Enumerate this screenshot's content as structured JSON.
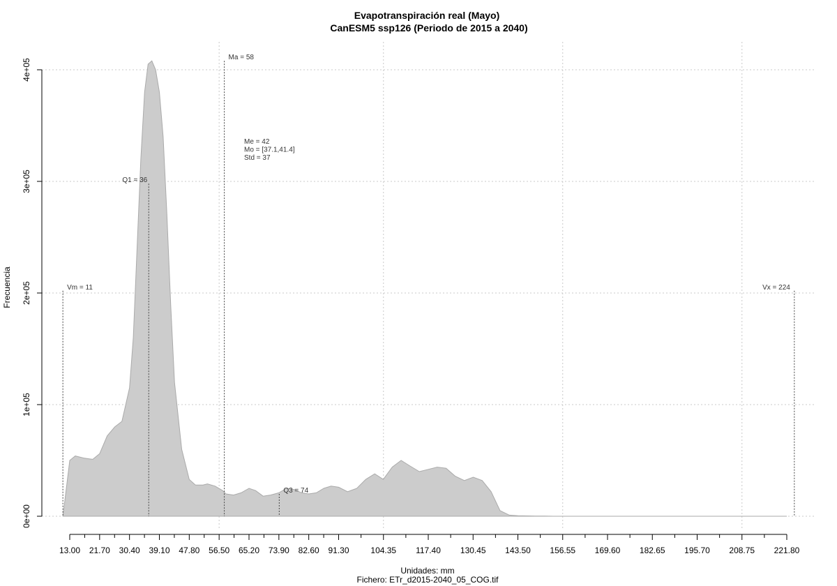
{
  "chart_data": {
    "type": "area",
    "title": "Evapotranspiración real (Mayo)",
    "subtitle": "CanESM5 ssp126 (Periodo de 2015 a 2040)",
    "xlabel": "Unidades: mm",
    "ylabel": "Frecuencia",
    "footer": "Fichero: ETr_d2015-2040_05_COG.tif",
    "xlim": [
      8.5,
      231
    ],
    "ylim": [
      0,
      420000
    ],
    "x_ticks": [
      13.0,
      21.7,
      30.4,
      39.1,
      47.8,
      56.5,
      65.2,
      73.9,
      82.6,
      91.3,
      104.35,
      117.4,
      130.45,
      143.5,
      156.55,
      169.6,
      182.65,
      195.7,
      208.75,
      221.8
    ],
    "x_tick_labels": [
      "13.00",
      "21.70",
      "30.40",
      "39.10",
      "47.80",
      "56.50",
      "65.20",
      "73.90",
      "82.60",
      "91.30",
      "104.35",
      "117.40",
      "130.45",
      "143.50",
      "156.55",
      "169.60",
      "182.65",
      "195.70",
      "208.75",
      "221.80"
    ],
    "x_minor_ticks": [
      17.35,
      26.05,
      34.75,
      43.45,
      52.15,
      60.85,
      69.55,
      78.25,
      86.95,
      97.825,
      110.875,
      123.925,
      136.975,
      150.025,
      163.075,
      176.125,
      189.175,
      202.225,
      215.275
    ],
    "y_ticks": [
      0,
      100000,
      200000,
      300000,
      400000
    ],
    "y_tick_labels": [
      "0e+00",
      "1e+05",
      "2e+05",
      "3e+05",
      "4e+05"
    ],
    "x_grid": [
      56.5,
      104.35,
      156.55,
      208.75
    ],
    "grid": true,
    "fill_color": "#cccccc",
    "stroke_color": "#aaaaaa",
    "x": [
      11,
      13,
      14.6,
      17.3,
      19.7,
      21.7,
      23.9,
      26.1,
      28.2,
      30.4,
      31.5,
      32.6,
      33.7,
      34.8,
      35.8,
      36.9,
      38.0,
      39.1,
      40.2,
      41.3,
      42.4,
      43.5,
      45.6,
      47.8,
      49.6,
      51.8,
      53.1,
      55.3,
      57.5,
      58.5,
      60.7,
      62.9,
      65.2,
      67.1,
      69.3,
      71.5,
      73.9,
      76.1,
      78.3,
      80.5,
      82.6,
      84.8,
      87.0,
      89.1,
      91.3,
      93.9,
      96.6,
      99.2,
      101.8,
      104.3,
      106.9,
      109.5,
      112.1,
      114.8,
      117.4,
      120.0,
      122.6,
      125.2,
      127.9,
      130.5,
      133.1,
      135.7,
      138.3,
      141.0,
      143.5,
      146.1,
      148.7,
      151.4,
      154.0,
      156.5,
      159.2,
      169.6,
      195.7,
      221.8
    ],
    "y": [
      0,
      50000,
      54000,
      52000,
      51000,
      56000,
      72000,
      80000,
      85000,
      115000,
      160000,
      240000,
      320000,
      380000,
      405000,
      408000,
      400000,
      380000,
      340000,
      270000,
      190000,
      120000,
      60000,
      33000,
      28000,
      28000,
      29000,
      27000,
      23000,
      20000,
      19000,
      21000,
      25000,
      23000,
      18000,
      19000,
      21000,
      25000,
      24000,
      21000,
      20000,
      21000,
      25000,
      27000,
      26000,
      22000,
      25000,
      33000,
      38000,
      33000,
      44000,
      50000,
      45000,
      40000,
      42000,
      44000,
      43000,
      36000,
      32000,
      35000,
      32000,
      22000,
      5000,
      1000,
      500,
      300,
      200,
      100,
      0,
      0,
      0,
      0,
      0,
      0
    ],
    "markers": [
      {
        "x": 11,
        "label": "Vm = 11",
        "top": 202000
      },
      {
        "x": 36,
        "label": "Q1 = 36",
        "top": 298000
      },
      {
        "x": 58,
        "label": "Ma = 58",
        "top": 408000
      },
      {
        "x": 74,
        "label": "Q3 = 74",
        "top": 20000
      },
      {
        "x": 224,
        "label": "Vx = 224",
        "top": 202000
      }
    ],
    "stats": [
      "Me = 42",
      "Mo = [37.1,41.4]",
      "Std = 37"
    ]
  }
}
